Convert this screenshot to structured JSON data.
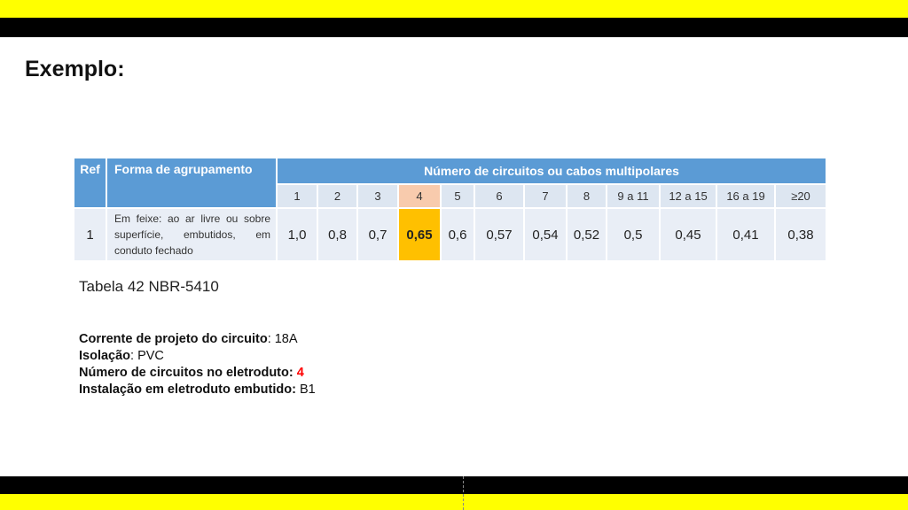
{
  "title": "Exemplo:",
  "table": {
    "header": {
      "ref": "Ref",
      "forma": "Forma de agrupamento",
      "numero": "Número de circuitos ou cabos multipolares"
    },
    "columns": [
      "1",
      "2",
      "3",
      "4",
      "5",
      "6",
      "7",
      "8",
      "9 a 11",
      "12 a 15",
      "16 a 19",
      "≥20"
    ],
    "row": {
      "ref": "1",
      "forma_lines": [
        "Em feixe: ao ar livre ou sobre",
        "superfície, embutidos, em",
        "conduto fechado"
      ],
      "values": [
        "1,0",
        "0,8",
        "0,7",
        "0,65",
        "0,6",
        "0,57",
        "0,54",
        "0,52",
        "0,5",
        "0,45",
        "0,41",
        "0,38"
      ]
    },
    "highlight_column": "4",
    "colors": {
      "header": "#5b9bd5",
      "highlight_header": "#f8cbad",
      "highlight_cell": "#ffc000"
    }
  },
  "caption": "Tabela 42 NBR-5410",
  "info": {
    "corrente_label": "Corrente de projeto do circuito",
    "corrente_value": ": 18A",
    "isolacao_label": "Isolação",
    "isolacao_value": ": PVC",
    "numero_label": "Número de circuitos no eletroduto:",
    "numero_value": "4",
    "instalacao_label": "Instalação em eletroduto embutido:",
    "instalacao_value": "B1"
  },
  "frame_colors": {
    "yellow": "#ffff00",
    "black": "#000000"
  }
}
